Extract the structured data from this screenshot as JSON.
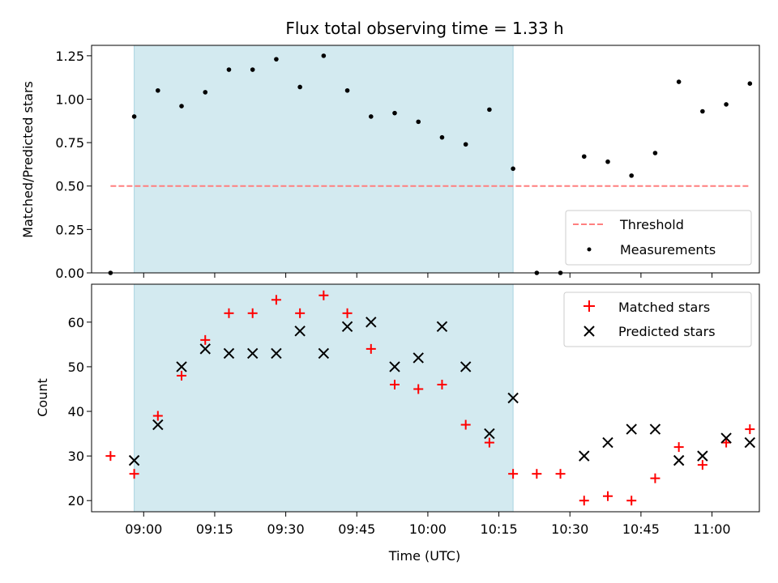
{
  "chart_data": [
    {
      "type": "scatter",
      "title": "Flux total observing time = 1.33 h",
      "xlabel": "",
      "ylabel": "Matched/Predicted stars",
      "xlim": [
        "08:49",
        "11:10"
      ],
      "ylim": [
        0,
        1.31
      ],
      "yticks": [
        0.0,
        0.25,
        0.5,
        0.75,
        1.0,
        1.25
      ],
      "ytick_labels": [
        "0.00",
        "0.25",
        "0.50",
        "0.75",
        "1.00",
        "1.25"
      ],
      "shaded_interval": {
        "start": "08:58",
        "end": "10:18",
        "color": "#d3eaf0"
      },
      "grid": false,
      "legend": {
        "position": "lower-right",
        "entries": [
          "Threshold",
          "Measurements"
        ]
      },
      "series": [
        {
          "name": "Threshold",
          "kind": "dashed-line",
          "color": "#ff7f7f",
          "x": [
            "08:53",
            "11:08"
          ],
          "y": [
            0.5,
            0.5
          ]
        },
        {
          "name": "Measurements",
          "kind": "dot",
          "color": "#000000",
          "x": [
            "08:53",
            "08:58",
            "09:03",
            "09:08",
            "09:13",
            "09:18",
            "09:23",
            "09:28",
            "09:33",
            "09:38",
            "09:43",
            "09:48",
            "09:53",
            "09:58",
            "10:03",
            "10:08",
            "10:13",
            "10:18",
            "10:23",
            "10:28",
            "10:33",
            "10:38",
            "10:43",
            "10:48",
            "10:53",
            "10:58",
            "11:03",
            "11:08"
          ],
          "y": [
            0.0,
            0.9,
            1.05,
            0.96,
            1.04,
            1.17,
            1.17,
            1.23,
            1.07,
            1.25,
            1.05,
            0.9,
            0.92,
            0.87,
            0.78,
            0.74,
            0.94,
            0.6,
            0.0,
            0.0,
            0.67,
            0.64,
            0.56,
            0.69,
            1.1,
            0.93,
            0.97,
            1.09
          ]
        }
      ]
    },
    {
      "type": "scatter",
      "title": "",
      "xlabel": "Time (UTC)",
      "ylabel": "Count",
      "xlim": [
        "08:49",
        "11:10"
      ],
      "ylim": [
        17.5,
        68.5
      ],
      "yticks": [
        20,
        30,
        40,
        50,
        60
      ],
      "ytick_labels": [
        "20",
        "30",
        "40",
        "50",
        "60"
      ],
      "xticks": [
        "09:00",
        "09:15",
        "09:30",
        "09:45",
        "10:00",
        "10:15",
        "10:30",
        "10:45",
        "11:00"
      ],
      "shaded_interval": {
        "start": "08:58",
        "end": "10:18",
        "color": "#d3eaf0"
      },
      "grid": false,
      "legend": {
        "position": "top-right",
        "entries": [
          "Matched stars",
          "Predicted stars"
        ]
      },
      "series": [
        {
          "name": "Matched stars",
          "kind": "plus",
          "color": "#ff0000",
          "x": [
            "08:53",
            "08:58",
            "09:03",
            "09:08",
            "09:13",
            "09:18",
            "09:23",
            "09:28",
            "09:33",
            "09:38",
            "09:43",
            "09:48",
            "09:53",
            "09:58",
            "10:03",
            "10:08",
            "10:13",
            "10:18",
            "10:23",
            "10:28",
            "10:33",
            "10:38",
            "10:43",
            "10:48",
            "10:53",
            "10:58",
            "11:03",
            "11:08"
          ],
          "y": [
            30,
            26,
            39,
            48,
            56,
            62,
            62,
            65,
            62,
            66,
            62,
            54,
            46,
            45,
            46,
            37,
            33,
            26,
            26,
            26,
            20,
            21,
            20,
            25,
            32,
            28,
            33,
            36
          ]
        },
        {
          "name": "Predicted stars",
          "kind": "x",
          "color": "#000000",
          "x": [
            "08:58",
            "09:03",
            "09:08",
            "09:13",
            "09:18",
            "09:23",
            "09:28",
            "09:33",
            "09:38",
            "09:43",
            "09:48",
            "09:53",
            "09:58",
            "10:03",
            "10:08",
            "10:13",
            "10:18",
            "10:33",
            "10:38",
            "10:43",
            "10:48",
            "10:53",
            "10:58",
            "11:03",
            "11:08"
          ],
          "y": [
            29,
            37,
            50,
            54,
            53,
            53,
            53,
            58,
            53,
            59,
            60,
            50,
            52,
            59,
            50,
            35,
            43,
            30,
            33,
            36,
            36,
            29,
            30,
            34,
            33
          ]
        }
      ]
    }
  ]
}
